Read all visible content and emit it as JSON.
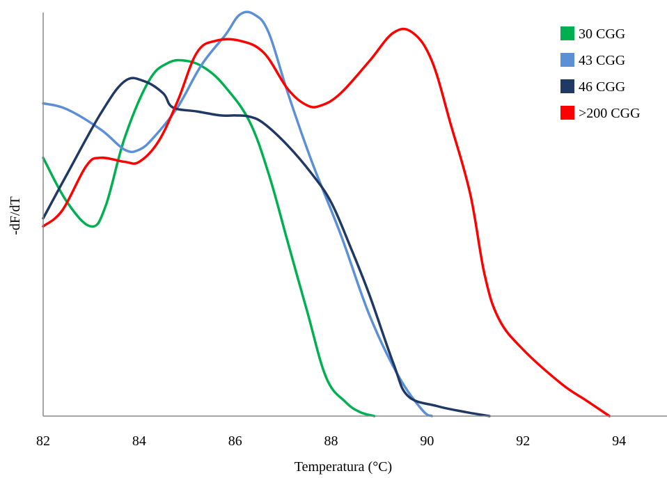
{
  "chart_data": {
    "type": "line",
    "title": "",
    "xlabel": "Temperatura (°C)",
    "ylabel": "-dF/dT",
    "xlim": [
      82,
      95
    ],
    "ylim": [
      0,
      100
    ],
    "xticks": [
      "82",
      "84",
      "86",
      "88",
      "90",
      "92",
      "94"
    ],
    "grid": false,
    "legend_position": "top-right",
    "series": [
      {
        "name": "30 CGG",
        "color": "#00b050",
        "x": [
          82,
          82.5,
          83,
          83.3,
          83.7,
          84.2,
          84.6,
          85,
          85.4,
          85.8,
          86.3,
          86.7,
          87.1,
          87.5,
          87.9,
          88.3,
          88.6,
          88.9
        ],
        "y": [
          64,
          53,
          47,
          52,
          69,
          83,
          87.5,
          88,
          86,
          81.5,
          73,
          60,
          43,
          26,
          9.5,
          3.5,
          1,
          0
        ]
      },
      {
        "name": "43 CGG",
        "color": "#5b8fd6",
        "x": [
          82,
          82.5,
          83.2,
          83.7,
          84,
          84.3,
          84.8,
          85.3,
          85.8,
          86.1,
          86.4,
          86.7,
          87.1,
          87.6,
          88.2,
          88.8,
          89.4,
          89.9,
          90.1
        ],
        "y": [
          77.5,
          76,
          71,
          66,
          66,
          69,
          76.5,
          87,
          94.5,
          99.5,
          99.5,
          95,
          80,
          63,
          45,
          25,
          10,
          1.5,
          0
        ]
      },
      {
        "name": "46 CGG",
        "color": "#1f3864",
        "x": [
          82,
          82.5,
          83.2,
          83.7,
          84.1,
          84.5,
          84.7,
          85.2,
          85.7,
          86,
          86.3,
          86.6,
          87.1,
          87.6,
          88,
          88.4,
          88.8,
          89.3,
          89.6,
          90.2,
          90.8,
          91.3
        ],
        "y": [
          49,
          60,
          75,
          83,
          83,
          80,
          76.5,
          75.5,
          74.5,
          74.5,
          74.2,
          72.5,
          67,
          60,
          53,
          42,
          30,
          13,
          5,
          2.5,
          1,
          0
        ]
      },
      {
        "name": ">200 CGG",
        "color": "#ff0000",
        "x": [
          82,
          82.4,
          82.9,
          83.2,
          83.7,
          84,
          84.4,
          84.8,
          85.2,
          85.6,
          86.1,
          86.6,
          87.1,
          87.5,
          87.8,
          88.2,
          88.8,
          89.3,
          89.7,
          90.1,
          90.5,
          90.9,
          91.2,
          91.5,
          92,
          92.8,
          93.3,
          93.8
        ],
        "y": [
          47,
          51,
          62,
          64,
          63,
          63,
          68,
          78,
          90,
          93,
          93,
          90,
          81,
          77,
          77,
          80,
          88,
          95,
          95,
          88,
          72,
          55,
          35,
          24,
          16.5,
          8,
          4,
          0
        ]
      }
    ]
  }
}
